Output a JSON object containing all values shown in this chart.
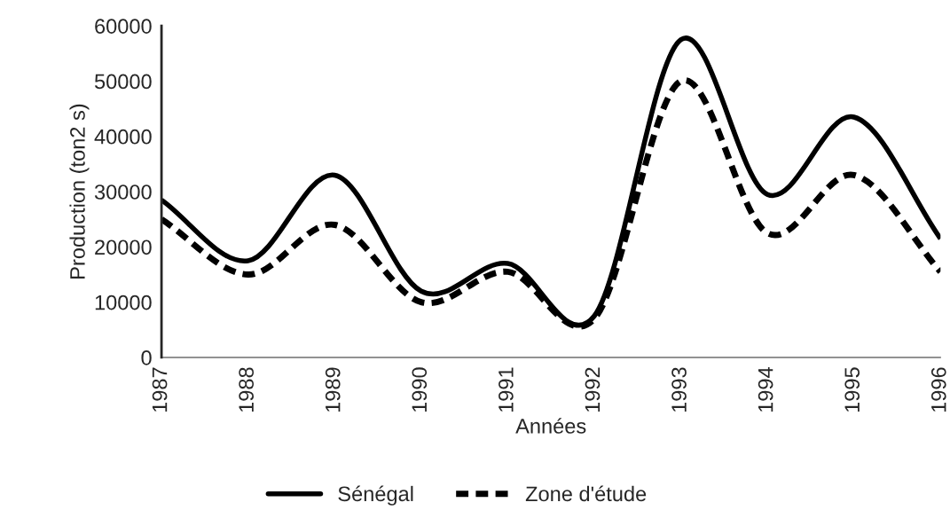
{
  "chart_data": {
    "type": "line",
    "xlabel": "Années",
    "ylabel": "Production (ton2 s)",
    "x": [
      1987,
      1988,
      1989,
      1990,
      1991,
      1992,
      1993,
      1994,
      1995,
      1996
    ],
    "series": [
      {
        "name": "Sénégal",
        "color": "#000000",
        "line_style": "solid",
        "values": [
          28500,
          17500,
          33000,
          12000,
          17000,
          7500,
          57500,
          29500,
          43500,
          21500
        ]
      },
      {
        "name": "Zone d'étude",
        "color": "#000000",
        "line_style": "dashed",
        "values": [
          25000,
          15000,
          24000,
          10000,
          15500,
          7000,
          50000,
          22500,
          33000,
          15500
        ]
      }
    ],
    "xlim": [
      1987,
      1996
    ],
    "xticks": [
      1987,
      1988,
      1989,
      1990,
      1991,
      1992,
      1993,
      1994,
      1995,
      1996
    ],
    "ylim": [
      0,
      60000
    ],
    "yticks": [
      0,
      10000,
      20000,
      30000,
      40000,
      50000,
      60000
    ],
    "grid": false,
    "legend": "bottom",
    "marker": "none"
  }
}
